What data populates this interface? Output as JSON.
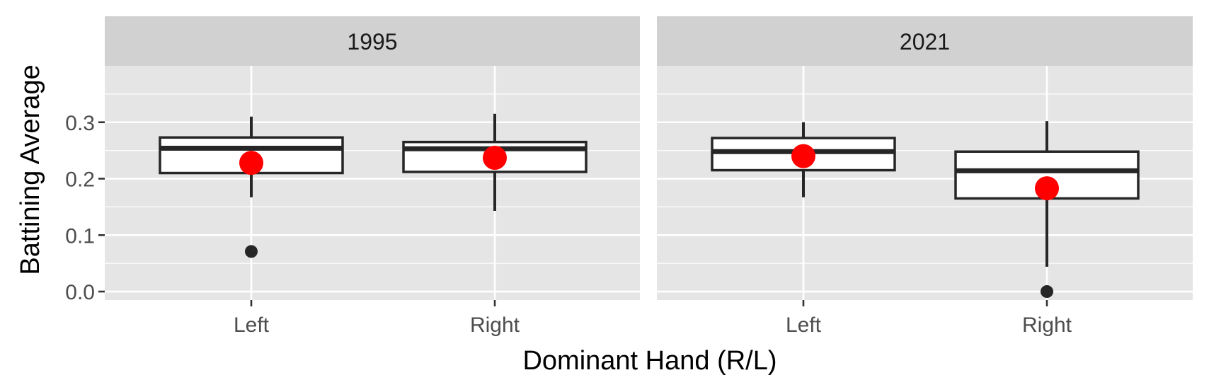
{
  "chart_data": {
    "type": "box",
    "xlabel": "Dominant Hand (R/L)",
    "ylabel": "Battining Average",
    "ylim": [
      -0.015,
      0.4
    ],
    "yticks": [
      0.0,
      0.1,
      0.2,
      0.3
    ],
    "ytick_labels": [
      "0.0",
      "0.1",
      "0.2",
      "0.3"
    ],
    "grid": true,
    "categories": [
      "Left",
      "Right"
    ],
    "colors": {
      "panel_bg": "#e5e5e5",
      "strip_bg": "#d1d1d1",
      "grid": "#ffffff",
      "box_line": "#262626",
      "box_fill": "#ffffff",
      "mean_point": "#ff0000",
      "outlier": "#262626"
    },
    "facets": [
      {
        "label": "1995",
        "boxes": [
          {
            "category": "Left",
            "whisker_low": 0.167,
            "q1": 0.21,
            "median": 0.254,
            "q3": 0.273,
            "whisker_high": 0.31,
            "mean": 0.228,
            "outliers": [
              0.071
            ]
          },
          {
            "category": "Right",
            "whisker_low": 0.143,
            "q1": 0.212,
            "median": 0.253,
            "q3": 0.265,
            "whisker_high": 0.315,
            "mean": 0.237,
            "outliers": []
          }
        ]
      },
      {
        "label": "2021",
        "boxes": [
          {
            "category": "Left",
            "whisker_low": 0.167,
            "q1": 0.215,
            "median": 0.248,
            "q3": 0.272,
            "whisker_high": 0.3,
            "mean": 0.24,
            "outliers": []
          },
          {
            "category": "Right",
            "whisker_low": 0.044,
            "q1": 0.165,
            "median": 0.214,
            "q3": 0.248,
            "whisker_high": 0.302,
            "mean": 0.183,
            "outliers": [
              0.0
            ]
          }
        ]
      }
    ]
  }
}
